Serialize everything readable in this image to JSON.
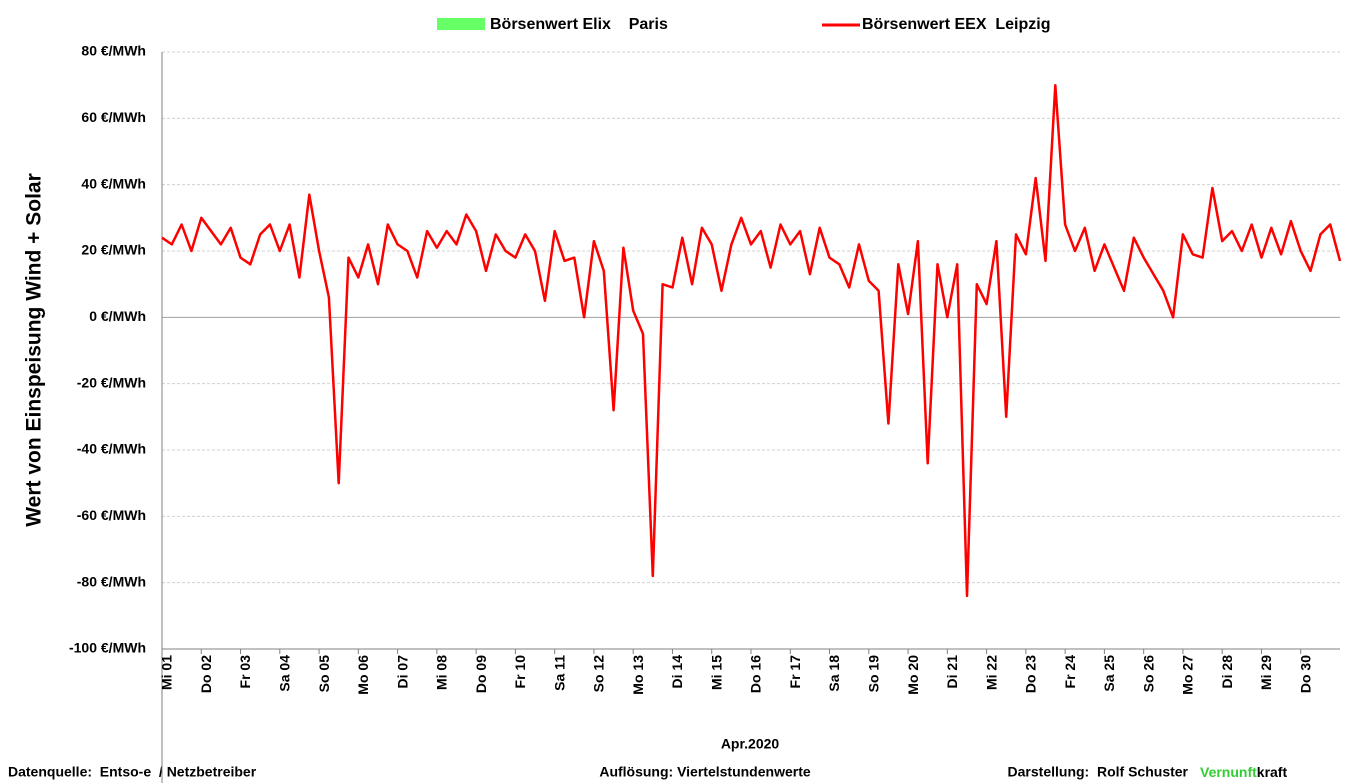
{
  "chart_data": {
    "type": "line",
    "y_label": "Wert von Einspeisung Wind + Solar",
    "x_label": "Apr.2020",
    "footer_left": "Datenquelle:  Entso-e  / Netzbetreiber",
    "footer_center": "Auflösung: Viertelstundenwerte",
    "footer_right": "Darstellung:  Rolf Schuster",
    "brand_part1": "Vernunft",
    "brand_part2": "kraft",
    "brand_color": "#33cc33",
    "negative_tick_color": "#ff0000",
    "grid": true,
    "xlim": [
      0,
      30
    ],
    "xticks": [
      {
        "value": 0,
        "label": "Mi 01"
      },
      {
        "value": 1,
        "label": "Do 02"
      },
      {
        "value": 2,
        "label": "Fr 03"
      },
      {
        "value": 3,
        "label": "Sa 04"
      },
      {
        "value": 4,
        "label": "So 05"
      },
      {
        "value": 5,
        "label": "Mo 06"
      },
      {
        "value": 6,
        "label": "Di 07"
      },
      {
        "value": 7,
        "label": "Mi 08"
      },
      {
        "value": 8,
        "label": "Do 09"
      },
      {
        "value": 9,
        "label": "Fr 10"
      },
      {
        "value": 10,
        "label": "Sa 11"
      },
      {
        "value": 11,
        "label": "So 12"
      },
      {
        "value": 12,
        "label": "Mo 13"
      },
      {
        "value": 13,
        "label": "Di 14"
      },
      {
        "value": 14,
        "label": "Mi 15"
      },
      {
        "value": 15,
        "label": "Do 16"
      },
      {
        "value": 16,
        "label": "Fr 17"
      },
      {
        "value": 17,
        "label": "Sa 18"
      },
      {
        "value": 18,
        "label": "So 19"
      },
      {
        "value": 19,
        "label": "Mo 20"
      },
      {
        "value": 20,
        "label": "Di 21"
      },
      {
        "value": 21,
        "label": "Mi 22"
      },
      {
        "value": 22,
        "label": "Do 23"
      },
      {
        "value": 23,
        "label": "Fr 24"
      },
      {
        "value": 24,
        "label": "Sa 25"
      },
      {
        "value": 25,
        "label": "So 26"
      },
      {
        "value": 26,
        "label": "Mo 27"
      },
      {
        "value": 27,
        "label": "Di 28"
      },
      {
        "value": 28,
        "label": "Mi 29"
      },
      {
        "value": 29,
        "label": "Do 30"
      }
    ],
    "ylim": [
      -100,
      80
    ],
    "yticks": [
      {
        "value": -100,
        "label": "-100 €/MWh"
      },
      {
        "value": -80,
        "label": "-80 €/MWh"
      },
      {
        "value": -60,
        "label": "-60 €/MWh"
      },
      {
        "value": -40,
        "label": "-40 €/MWh"
      },
      {
        "value": -20,
        "label": "-20 €/MWh"
      },
      {
        "value": 0,
        "label": "0 €/MWh"
      },
      {
        "value": 20,
        "label": "20 €/MWh"
      },
      {
        "value": 40,
        "label": "40 €/MWh"
      },
      {
        "value": 60,
        "label": "60 €/MWh"
      },
      {
        "value": 80,
        "label": "80 €/MWh"
      }
    ],
    "x": [
      0,
      0.25,
      0.5,
      0.75,
      1,
      1.25,
      1.5,
      1.75,
      2,
      2.25,
      2.5,
      2.75,
      3,
      3.25,
      3.5,
      3.75,
      4,
      4.25,
      4.5,
      4.75,
      5,
      5.25,
      5.5,
      5.75,
      6,
      6.25,
      6.5,
      6.75,
      7,
      7.25,
      7.5,
      7.75,
      8,
      8.25,
      8.5,
      8.75,
      9,
      9.25,
      9.5,
      9.75,
      10,
      10.25,
      10.5,
      10.75,
      11,
      11.25,
      11.5,
      11.75,
      12,
      12.25,
      12.5,
      12.75,
      13,
      13.25,
      13.5,
      13.75,
      14,
      14.25,
      14.5,
      14.75,
      15,
      15.25,
      15.5,
      15.75,
      16,
      16.25,
      16.5,
      16.75,
      17,
      17.25,
      17.5,
      17.75,
      18,
      18.25,
      18.5,
      18.75,
      19,
      19.25,
      19.5,
      19.75,
      20,
      20.25,
      20.5,
      20.75,
      21,
      21.25,
      21.5,
      21.75,
      22,
      22.25,
      22.5,
      22.75,
      23,
      23.25,
      23.5,
      23.75,
      24,
      24.25,
      24.5,
      24.75,
      25,
      25.25,
      25.5,
      25.75,
      26,
      26.25,
      26.5,
      26.75,
      27,
      27.25,
      27.5,
      27.75,
      28,
      28.25,
      28.5,
      28.75,
      29,
      29.25,
      29.5,
      29.75,
      30
    ],
    "series": [
      {
        "name": "Börsenwert Elix    Paris",
        "color": "#66ff66",
        "legend_symbol": "box",
        "values": [
          null,
          null,
          null,
          null,
          null,
          null,
          null,
          null,
          null,
          null,
          null,
          null,
          null,
          null,
          null,
          null,
          null,
          null,
          null,
          null,
          null,
          null,
          null,
          null,
          null,
          null,
          null,
          null,
          null,
          null,
          null,
          null,
          null,
          null,
          null,
          null,
          null,
          null,
          null,
          null,
          null,
          null,
          null,
          null,
          null,
          null,
          null,
          null,
          null,
          null,
          null,
          null,
          null,
          null,
          null,
          null,
          null,
          null,
          null,
          null,
          null,
          null,
          null,
          null,
          null,
          null,
          null,
          null,
          null,
          null,
          null,
          null,
          null,
          null,
          null,
          null,
          null,
          null,
          null,
          null,
          null,
          null,
          null,
          null,
          null,
          null,
          null,
          null,
          null,
          null,
          null,
          null,
          null,
          null,
          null,
          null,
          null,
          null,
          null,
          null,
          null,
          null,
          null,
          null,
          null,
          null,
          null,
          null,
          null,
          null,
          null,
          null,
          null,
          null,
          null,
          null,
          null,
          null,
          null,
          null,
          null
        ]
      },
      {
        "name": "Börsenwert EEX  Leipzig",
        "color": "#ff0000",
        "legend_symbol": "line",
        "values": [
          24,
          22,
          28,
          20,
          30,
          26,
          22,
          27,
          18,
          16,
          25,
          28,
          20,
          28,
          12,
          37,
          20,
          6,
          -50,
          18,
          12,
          22,
          10,
          28,
          22,
          20,
          12,
          26,
          21,
          26,
          22,
          31,
          26,
          14,
          25,
          20,
          18,
          25,
          20,
          5,
          26,
          17,
          18,
          0,
          23,
          14,
          -28,
          21,
          2,
          -5,
          -78,
          10,
          9,
          24,
          10,
          27,
          22,
          8,
          22,
          30,
          22,
          26,
          15,
          28,
          22,
          26,
          13,
          27,
          18,
          16,
          9,
          22,
          11,
          8,
          -32,
          16,
          1,
          23,
          -44,
          16,
          0,
          16,
          -84,
          10,
          4,
          23,
          -30,
          25,
          19,
          42,
          17,
          70,
          28,
          20,
          27,
          14,
          22,
          15,
          8,
          24,
          18,
          13,
          8,
          0,
          25,
          19,
          18,
          39,
          23,
          26,
          20,
          28,
          18,
          27,
          19,
          29,
          20,
          14,
          25,
          28,
          17
        ]
      }
    ]
  }
}
